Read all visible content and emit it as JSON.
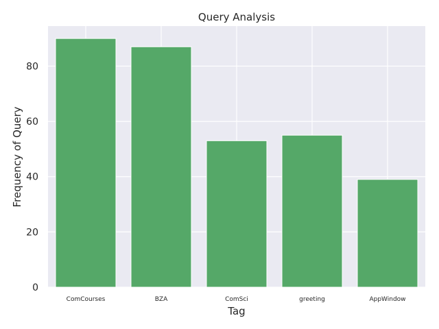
{
  "chart_data": {
    "type": "bar",
    "title": "Query Analysis",
    "xlabel": "Tag",
    "ylabel": "Frequency of Query",
    "categories": [
      "ComCourses",
      "BZA",
      "ComSci",
      "greeting",
      "AppWindow"
    ],
    "values": [
      90,
      87,
      53,
      55,
      39
    ],
    "ylim": [
      0,
      94.5
    ],
    "yticks": [
      0,
      20,
      40,
      60,
      80
    ],
    "grid": true,
    "colors": {
      "bar": "#55a868",
      "plot_background": "#eaeaf2",
      "grid": "#ffffff"
    }
  }
}
